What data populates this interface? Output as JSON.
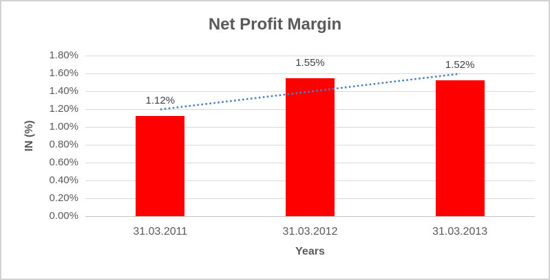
{
  "chart_data": {
    "type": "bar",
    "title": "Net Profit Margin",
    "categories": [
      "31.03.2011",
      "31.03.2012",
      "31.03.2013"
    ],
    "series": [
      {
        "name": "Net Profit Margin",
        "values": [
          1.12,
          1.55,
          1.52
        ],
        "color": "#ff0000"
      }
    ],
    "data_labels": [
      "1.12%",
      "1.55%",
      "1.52%"
    ],
    "xlabel": "Years",
    "ylabel": "IN (%)",
    "ylim": [
      0,
      1.8
    ],
    "ytick_step": 0.2,
    "ytick_labels": [
      "0.00%",
      "0.20%",
      "0.40%",
      "0.60%",
      "0.80%",
      "1.00%",
      "1.20%",
      "1.40%",
      "1.60%",
      "1.80%"
    ],
    "grid": true,
    "legend": "none",
    "trendline": {
      "type": "linear",
      "style": "dotted",
      "color": "#4a80bd",
      "start_value": 1.1967,
      "end_value": 1.5967
    }
  },
  "colors": {
    "bar": "#ff0000",
    "trendline": "#4a80bd",
    "gridline": "#d9d9d9",
    "axis_line": "#c3c3c3",
    "title_text": "#595959",
    "axis_title_text": "#595959",
    "tick_text": "#595959",
    "data_label_text": "#404040",
    "frame_border": "#d2d2d2",
    "background": "#ffffff"
  }
}
